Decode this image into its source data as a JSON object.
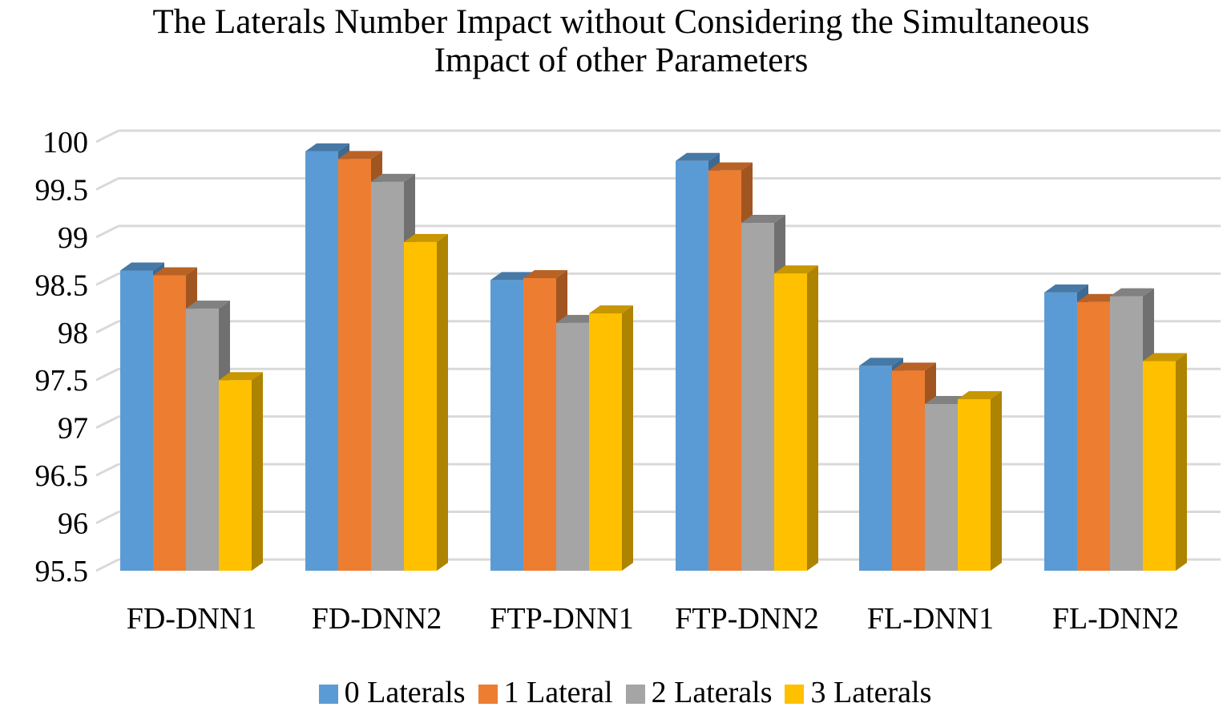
{
  "chart_data": {
    "type": "bar",
    "style": "3d-clustered-column",
    "title_lines": [
      "The Laterals Number Impact without Considering the Simultaneous",
      "Impact of other Parameters"
    ],
    "categories": [
      "FD-DNN1",
      "FD-DNN2",
      "FTP-DNN1",
      "FTP-DNN2",
      "FL-DNN1",
      "FL-DNN2"
    ],
    "series": [
      {
        "name": "0 Laterals",
        "color": "#5B9BD5",
        "values": [
          98.65,
          99.9,
          98.55,
          99.8,
          97.65,
          98.42
        ]
      },
      {
        "name": "1 Lateral",
        "color": "#ED7D31",
        "values": [
          98.6,
          99.82,
          98.57,
          99.7,
          97.6,
          98.32
        ]
      },
      {
        "name": "2 Laterals",
        "color": "#A5A5A5",
        "values": [
          98.25,
          99.58,
          98.1,
          99.15,
          97.25,
          98.38
        ]
      },
      {
        "name": "3 Laterals",
        "color": "#FFC000",
        "values": [
          97.5,
          98.95,
          98.2,
          98.62,
          97.3,
          97.7
        ]
      }
    ],
    "y_ticks": [
      "95.5",
      "96",
      "96.5",
      "97",
      "97.5",
      "98",
      "98.5",
      "99",
      "99.5",
      "100"
    ],
    "ylim": [
      95.5,
      100
    ],
    "ytick_step": 0.5,
    "xlabel": "",
    "ylabel": "",
    "grid": true,
    "legend_position": "bottom"
  }
}
